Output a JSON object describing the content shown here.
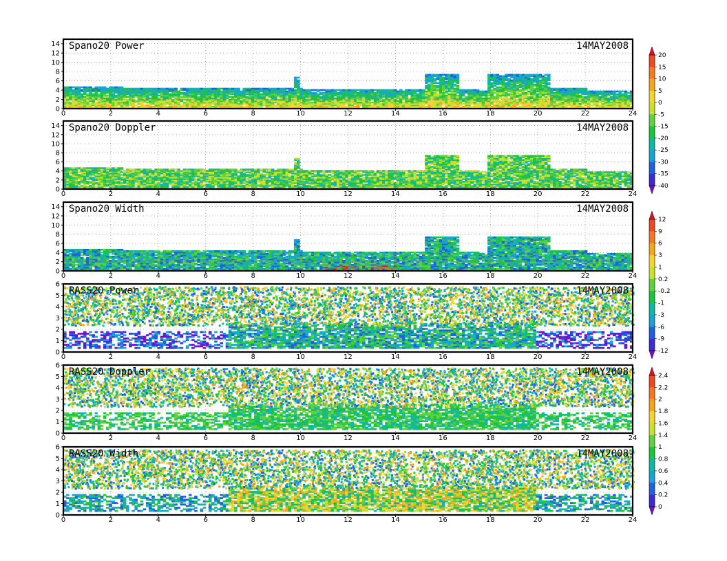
{
  "chart_data": [
    {
      "type": "heatmap",
      "title": "Spano20 Power",
      "date": "14MAY2008",
      "xlim": [
        0,
        24
      ],
      "xticks": [
        "0",
        "2",
        "4",
        "6",
        "8",
        "10",
        "12",
        "14",
        "16",
        "18",
        "20",
        "22",
        "24"
      ],
      "ylim": [
        0,
        15
      ],
      "yticks": [
        "0",
        "2",
        "4",
        "6",
        "8",
        "10",
        "12",
        "14"
      ],
      "grid": true,
      "colorbar_group": 0
    },
    {
      "type": "heatmap",
      "title": "Spano20 Doppler",
      "date": "14MAY2008",
      "xlim": [
        0,
        24
      ],
      "xticks": [
        "0",
        "2",
        "4",
        "6",
        "8",
        "10",
        "12",
        "14",
        "16",
        "18",
        "20",
        "22",
        "24"
      ],
      "ylim": [
        0,
        15
      ],
      "yticks": [
        "0",
        "2",
        "4",
        "6",
        "8",
        "10",
        "12",
        "14"
      ],
      "grid": true,
      "colorbar_group": 0
    },
    {
      "type": "heatmap",
      "title": "Spano20 Width",
      "date": "14MAY2008",
      "xlim": [
        0,
        24
      ],
      "xticks": [
        "0",
        "2",
        "4",
        "6",
        "8",
        "10",
        "12",
        "14",
        "16",
        "18",
        "20",
        "22",
        "24"
      ],
      "ylim": [
        0,
        15
      ],
      "yticks": [
        "0",
        "2",
        "4",
        "6",
        "8",
        "10",
        "12",
        "14"
      ],
      "grid": true,
      "colorbar_group": 1
    },
    {
      "type": "heatmap",
      "title": "RASS20 Power",
      "date": "14MAY2008",
      "xlim": [
        0,
        24
      ],
      "xticks": [
        "0",
        "2",
        "4",
        "6",
        "8",
        "10",
        "12",
        "14",
        "16",
        "18",
        "20",
        "22",
        "24"
      ],
      "ylim": [
        0,
        6
      ],
      "yticks": [
        "0",
        "1",
        "2",
        "3",
        "4",
        "5",
        "6"
      ],
      "grid": true,
      "colorbar_group": 1
    },
    {
      "type": "heatmap",
      "title": "RASS20 Doppler",
      "date": "14MAY2008",
      "xlim": [
        0,
        24
      ],
      "xticks": [
        "0",
        "2",
        "4",
        "6",
        "8",
        "10",
        "12",
        "14",
        "16",
        "18",
        "20",
        "22",
        "24"
      ],
      "ylim": [
        0,
        6
      ],
      "yticks": [
        "0",
        "1",
        "2",
        "3",
        "4",
        "5",
        "6"
      ],
      "grid": true,
      "colorbar_group": 2
    },
    {
      "type": "heatmap",
      "title": "RASS20 Width",
      "date": "14MAY2008",
      "xlim": [
        0,
        24
      ],
      "xticks": [
        "0",
        "2",
        "4",
        "6",
        "8",
        "10",
        "12",
        "14",
        "16",
        "18",
        "20",
        "22",
        "24"
      ],
      "ylim": [
        0,
        6
      ],
      "yticks": [
        "0",
        "1",
        "2",
        "3",
        "4",
        "5",
        "6"
      ],
      "grid": true,
      "colorbar_group": 2
    }
  ],
  "colorbars": [
    {
      "labels": [
        "20",
        "15",
        "10",
        "5",
        "0",
        "-5",
        "-15",
        "-20",
        "-25",
        "-30",
        "-35",
        "-40"
      ],
      "colors": [
        "#e0102a",
        "#ef4a1f",
        "#f5781f",
        "#f7a520",
        "#f5d23a",
        "#c8e030",
        "#5fd23c",
        "#20c43a",
        "#12b8a4",
        "#1aa2d6",
        "#1e62e0",
        "#3c2cd6",
        "#7c10c4"
      ]
    },
    {
      "labels": [
        "12",
        "9",
        "6",
        "3",
        "1",
        "0.2",
        "-0.2",
        "-1",
        "-3",
        "-6",
        "-9",
        "-12"
      ],
      "colors": [
        "#e0102a",
        "#ef4a1f",
        "#f5781f",
        "#f7a520",
        "#f5d23a",
        "#c8e030",
        "#5fd23c",
        "#20c43a",
        "#12b8a4",
        "#1aa2d6",
        "#1e62e0",
        "#3c2cd6",
        "#7c10c4"
      ]
    },
    {
      "labels": [
        "2.4",
        "2.2",
        "2",
        "1.8",
        "1.6",
        "1.4",
        "1",
        "0.8",
        "0.6",
        "0.4",
        "0.2",
        "0"
      ],
      "colors": [
        "#e0102a",
        "#ef4a1f",
        "#f5781f",
        "#f7a520",
        "#f5d23a",
        "#c8e030",
        "#5fd23c",
        "#20c43a",
        "#12b8a4",
        "#1aa2d6",
        "#1e62e0",
        "#3c2cd6",
        "#7c10c4"
      ]
    }
  ]
}
